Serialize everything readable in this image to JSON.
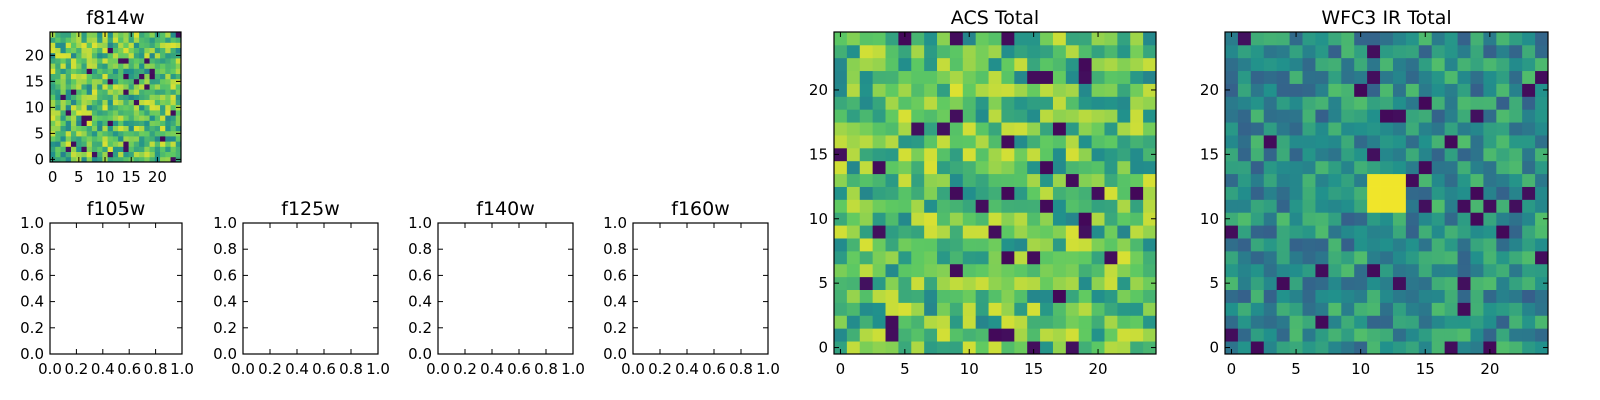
{
  "figure": {
    "background": "#ffffff",
    "colormap": [
      "#440154",
      "#3b528b",
      "#21918c",
      "#5ec962",
      "#fde725"
    ]
  },
  "chart_data": [
    {
      "type": "heatmap",
      "title": "f814w",
      "grid_size": 25,
      "xlim": [
        -0.5,
        24.5
      ],
      "ylim": [
        -0.5,
        24.5
      ],
      "xticks": [
        0,
        5,
        10,
        15,
        20
      ],
      "yticks": [
        0,
        5,
        10,
        15,
        20
      ],
      "xtick_labels": [
        "0",
        "5",
        "10",
        "15",
        "20"
      ],
      "ytick_labels": [
        "0",
        "5",
        "10",
        "15",
        "20"
      ],
      "style": "high",
      "seed": 11
    },
    {
      "type": "heatmap",
      "title": "f105w",
      "empty": true,
      "xlim": [
        0,
        1
      ],
      "ylim": [
        0,
        1
      ],
      "xticks": [
        0,
        0.2,
        0.4,
        0.6,
        0.8,
        1.0
      ],
      "yticks": [
        0,
        0.2,
        0.4,
        0.6,
        0.8,
        1.0
      ],
      "xtick_labels": [
        "0.0",
        "0.2",
        "0.4",
        "0.6",
        "0.8",
        "1.0"
      ],
      "ytick_labels": [
        "0.0",
        "0.2",
        "0.4",
        "0.6",
        "0.8",
        "1.0"
      ]
    },
    {
      "type": "heatmap",
      "title": "f125w",
      "empty": true,
      "xlim": [
        0,
        1
      ],
      "ylim": [
        0,
        1
      ],
      "xticks": [
        0,
        0.2,
        0.4,
        0.6,
        0.8,
        1.0
      ],
      "yticks": [
        0,
        0.2,
        0.4,
        0.6,
        0.8,
        1.0
      ],
      "xtick_labels": [
        "0.0",
        "0.2",
        "0.4",
        "0.6",
        "0.8",
        "1.0"
      ],
      "ytick_labels": [
        "0.0",
        "0.2",
        "0.4",
        "0.6",
        "0.8",
        "1.0"
      ]
    },
    {
      "type": "heatmap",
      "title": "f140w",
      "empty": true,
      "xlim": [
        0,
        1
      ],
      "ylim": [
        0,
        1
      ],
      "xticks": [
        0,
        0.2,
        0.4,
        0.6,
        0.8,
        1.0
      ],
      "yticks": [
        0,
        0.2,
        0.4,
        0.6,
        0.8,
        1.0
      ],
      "xtick_labels": [
        "0.0",
        "0.2",
        "0.4",
        "0.6",
        "0.8",
        "1.0"
      ],
      "ytick_labels": [
        "0.0",
        "0.2",
        "0.4",
        "0.6",
        "0.8",
        "1.0"
      ]
    },
    {
      "type": "heatmap",
      "title": "f160w",
      "empty": true,
      "xlim": [
        0,
        1
      ],
      "ylim": [
        0,
        1
      ],
      "xticks": [
        0,
        0.2,
        0.4,
        0.6,
        0.8,
        1.0
      ],
      "yticks": [
        0,
        0.2,
        0.4,
        0.6,
        0.8,
        1.0
      ],
      "xtick_labels": [
        "0.0",
        "0.2",
        "0.4",
        "0.6",
        "0.8",
        "1.0"
      ],
      "ytick_labels": [
        "0.0",
        "0.2",
        "0.4",
        "0.6",
        "0.8",
        "1.0"
      ]
    },
    {
      "type": "heatmap",
      "title": "ACS Total",
      "grid_size": 25,
      "xlim": [
        -0.5,
        24.5
      ],
      "ylim": [
        -0.5,
        24.5
      ],
      "xticks": [
        0,
        5,
        10,
        15,
        20
      ],
      "yticks": [
        0,
        5,
        10,
        15,
        20
      ],
      "xtick_labels": [
        "0",
        "5",
        "10",
        "15",
        "20"
      ],
      "ytick_labels": [
        "0",
        "5",
        "10",
        "15",
        "20"
      ],
      "style": "high",
      "seed": 29
    },
    {
      "type": "heatmap",
      "title": "WFC3 IR Total",
      "grid_size": 25,
      "xlim": [
        -0.5,
        24.5
      ],
      "ylim": [
        -0.5,
        24.5
      ],
      "xticks": [
        0,
        5,
        10,
        15,
        20
      ],
      "yticks": [
        0,
        5,
        10,
        15,
        20
      ],
      "xtick_labels": [
        "0",
        "5",
        "10",
        "15",
        "20"
      ],
      "ytick_labels": [
        "0",
        "5",
        "10",
        "15",
        "20"
      ],
      "style": "mid",
      "seed": 47,
      "hotspot": {
        "x": [
          11,
          13
        ],
        "y": [
          11,
          13
        ]
      }
    }
  ]
}
